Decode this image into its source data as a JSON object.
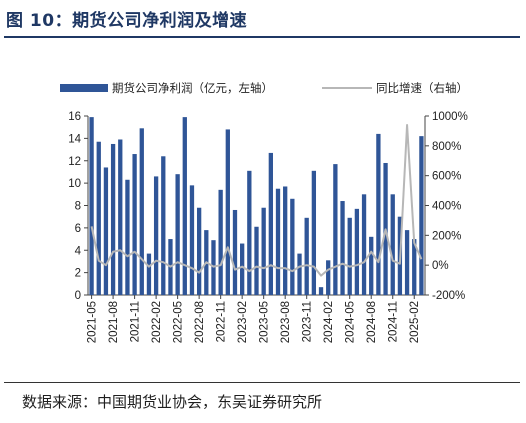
{
  "figure_title": "图 10：期货公司净利润及增速",
  "source_note": "数据来源：中国期货业协会，东吴证券研究所",
  "colors": {
    "bar": "#2f5597",
    "line": "#b7b7b7",
    "title": "#1f3864"
  },
  "chart_data": {
    "type": "bar",
    "grid": false,
    "legend_position": "top",
    "x_tick_labels": [
      "2021-05",
      "2021-08",
      "2021-11",
      "2022-02",
      "2022-05",
      "2022-08",
      "2022-11",
      "2023-02",
      "2023-05",
      "2023-08",
      "2023-11",
      "2024-02",
      "2024-05",
      "2024-08",
      "2024-11",
      "2025-02"
    ],
    "categories": [
      "2021-05",
      "2021-06",
      "2021-07",
      "2021-08",
      "2021-09",
      "2021-10",
      "2021-11",
      "2021-12",
      "2022-01",
      "2022-02",
      "2022-03",
      "2022-04",
      "2022-05",
      "2022-06",
      "2022-07",
      "2022-08",
      "2022-09",
      "2022-10",
      "2022-11",
      "2022-12",
      "2023-01",
      "2023-02",
      "2023-03",
      "2023-04",
      "2023-05",
      "2023-06",
      "2023-07",
      "2023-08",
      "2023-09",
      "2023-10",
      "2023-11",
      "2023-12",
      "2024-01",
      "2024-02",
      "2024-03",
      "2024-04",
      "2024-05",
      "2024-06",
      "2024-07",
      "2024-08",
      "2024-09",
      "2024-10",
      "2024-11",
      "2024-12",
      "2025-01",
      "2025-02",
      "2025-03"
    ],
    "y_left": {
      "lim": [
        0,
        16
      ],
      "ticks": [
        0,
        2,
        4,
        6,
        8,
        10,
        12,
        14,
        16
      ]
    },
    "y_right": {
      "lim": [
        -200,
        1000
      ],
      "ticks": [
        "-200%",
        "0%",
        "200%",
        "400%",
        "600%",
        "800%",
        "1000%"
      ],
      "tick_values": [
        -200,
        0,
        200,
        400,
        600,
        800,
        1000
      ]
    },
    "series": [
      {
        "name": "期货公司净利润（亿元，左轴）",
        "type": "bar",
        "axis": "left",
        "values": [
          15.9,
          13.7,
          11.4,
          13.5,
          13.9,
          10.3,
          12.6,
          14.9,
          3.7,
          10.6,
          12.4,
          5.0,
          10.8,
          15.9,
          9.8,
          7.8,
          5.8,
          4.9,
          9.4,
          14.8,
          7.6,
          4.6,
          11.1,
          6.1,
          7.8,
          12.7,
          9.5,
          9.7,
          8.6,
          3.7,
          6.9,
          11.1,
          0.7,
          3.1,
          11.7,
          8.4,
          6.9,
          7.7,
          9.0,
          5.2,
          14.4,
          11.8,
          9.0,
          7.0,
          5.8,
          5.0,
          14.2
        ]
      },
      {
        "name": "同比增速（右轴）",
        "type": "line",
        "axis": "right",
        "values": [
          260,
          30,
          0,
          90,
          100,
          60,
          90,
          40,
          -10,
          30,
          20,
          -10,
          20,
          0,
          -20,
          -50,
          20,
          -10,
          0,
          120,
          -30,
          -10,
          -40,
          -10,
          -20,
          0,
          -20,
          -20,
          -40,
          -10,
          0,
          -10,
          -70,
          -30,
          -10,
          10,
          -10,
          0,
          20,
          90,
          20,
          240,
          30,
          10,
          940,
          150,
          40
        ]
      }
    ]
  }
}
